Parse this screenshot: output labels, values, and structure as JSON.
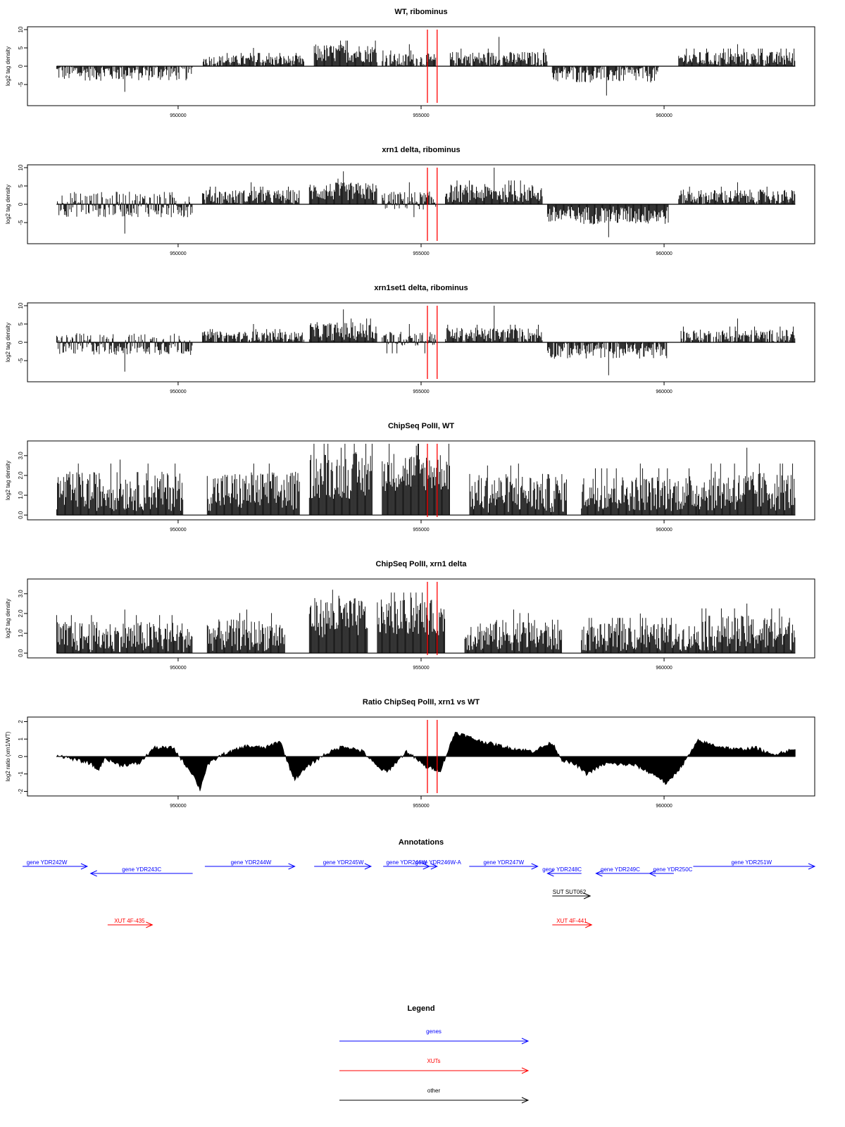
{
  "colors": {
    "genes": "#0000ff",
    "xuts": "#ff0000",
    "other": "#000000",
    "marker": "#ff0000",
    "bars": "#000000"
  },
  "x_ticks": [
    950000,
    955000,
    960000
  ],
  "markers_x": [
    955130,
    955330
  ],
  "chart_data": [
    {
      "type": "bar",
      "title": "WT, ribominus",
      "ylabel": "log2 tag density",
      "yticks": [
        -5,
        0,
        5,
        10
      ],
      "ylim": [
        -10,
        10
      ],
      "xlim": [
        946900,
        963100
      ],
      "segments": [
        {
          "x": [
            947500,
            950300
          ],
          "mean": -1.5,
          "amp": 2.5,
          "sign": "neg",
          "peak": -7
        },
        {
          "x": [
            950500,
            952600
          ],
          "mean": 1.5,
          "amp": 1.5,
          "sign": "pos",
          "peak": 5
        },
        {
          "x": [
            952800,
            954100
          ],
          "mean": 3.5,
          "amp": 2.5,
          "sign": "pos",
          "peak": 8.5
        },
        {
          "x": [
            954200,
            955300
          ],
          "mean": 1.5,
          "amp": 2,
          "sign": "pos",
          "peak": 6
        },
        {
          "x": [
            955600,
            957600
          ],
          "mean": 2,
          "amp": 2,
          "sign": "pos",
          "peak": 8
        },
        {
          "x": [
            957700,
            959900
          ],
          "mean": -2,
          "amp": 2.5,
          "sign": "neg",
          "peak": -8
        },
        {
          "x": [
            960300,
            962700
          ],
          "mean": 2,
          "amp": 2,
          "sign": "pos",
          "peak": 6
        }
      ]
    },
    {
      "type": "bar",
      "title": "xrn1 delta, ribominus",
      "ylabel": "log2 tag density",
      "yticks": [
        -5,
        0,
        5,
        10
      ],
      "ylim": [
        -10,
        10
      ],
      "xlim": [
        946900,
        963100
      ],
      "segments": [
        {
          "x": [
            947500,
            950300
          ],
          "mean": 0,
          "amp": 3.5,
          "sign": "both",
          "peak": -8
        },
        {
          "x": [
            950500,
            952500
          ],
          "mean": 2,
          "amp": 2,
          "sign": "pos",
          "peak": 6
        },
        {
          "x": [
            952700,
            954100
          ],
          "mean": 3.5,
          "amp": 2.5,
          "sign": "pos",
          "peak": 9
        },
        {
          "x": [
            954200,
            955300
          ],
          "mean": 1,
          "amp": 2.5,
          "sign": "both",
          "peak": 6
        },
        {
          "x": [
            955500,
            957500
          ],
          "mean": 3,
          "amp": 2.5,
          "sign": "pos",
          "peak": 10.5
        },
        {
          "x": [
            957600,
            960100
          ],
          "mean": -3,
          "amp": 2.5,
          "sign": "neg",
          "peak": -9
        },
        {
          "x": [
            960300,
            962700
          ],
          "mean": 2,
          "amp": 2,
          "sign": "pos",
          "peak": 6
        }
      ]
    },
    {
      "type": "bar",
      "title": "xrn1set1 delta, ribominus",
      "ylabel": "log2 tag density",
      "yticks": [
        -5,
        0,
        5,
        10
      ],
      "ylim": [
        -10,
        10
      ],
      "xlim": [
        946900,
        963100
      ],
      "segments": [
        {
          "x": [
            947500,
            950300
          ],
          "mean": -0.5,
          "amp": 3,
          "sign": "both",
          "peak": -8
        },
        {
          "x": [
            950500,
            952600
          ],
          "mean": 1.5,
          "amp": 1.5,
          "sign": "pos",
          "peak": 5
        },
        {
          "x": [
            952700,
            954100
          ],
          "mean": 3,
          "amp": 2.5,
          "sign": "pos",
          "peak": 9
        },
        {
          "x": [
            954200,
            955300
          ],
          "mean": 1,
          "amp": 2,
          "sign": "both",
          "peak": 5
        },
        {
          "x": [
            955500,
            957500
          ],
          "mean": 2,
          "amp": 2,
          "sign": "pos",
          "peak": 10
        },
        {
          "x": [
            957600,
            960100
          ],
          "mean": -2,
          "amp": 2.5,
          "sign": "neg",
          "peak": -9
        },
        {
          "x": [
            960300,
            962700
          ],
          "mean": 1.5,
          "amp": 2,
          "sign": "pos",
          "peak": 6.5
        }
      ]
    },
    {
      "type": "bar",
      "title": "ChipSeq PolII, WT",
      "ylabel": "log2 tag density",
      "yticks": [
        0.0,
        1.0,
        2.0,
        3.0
      ],
      "ylim": [
        -0.1,
        3.6
      ],
      "ytick_labels": [
        "0.0",
        "1.0",
        "2.0",
        "3.0"
      ],
      "xlim": [
        946900,
        963100
      ],
      "segments": [
        {
          "x": [
            947500,
            950100
          ],
          "mean": 1.2,
          "amp": 1.0,
          "sign": "pos",
          "peak": 2.8
        },
        {
          "x": [
            950600,
            952500
          ],
          "mean": 1.2,
          "amp": 1.0,
          "sign": "pos",
          "peak": 2.7
        },
        {
          "x": [
            952700,
            954000
          ],
          "mean": 2.0,
          "amp": 1.2,
          "sign": "pos",
          "peak": 3.4
        },
        {
          "x": [
            954200,
            955600
          ],
          "mean": 2.2,
          "amp": 1.0,
          "sign": "pos",
          "peak": 3.5
        },
        {
          "x": [
            956000,
            958000
          ],
          "mean": 1.1,
          "amp": 1.0,
          "sign": "pos",
          "peak": 2.6
        },
        {
          "x": [
            958300,
            960700
          ],
          "mean": 1.1,
          "amp": 0.9,
          "sign": "pos",
          "peak": 2.6
        },
        {
          "x": [
            960700,
            962700
          ],
          "mean": 1.2,
          "amp": 1.0,
          "sign": "pos",
          "peak": 3.4
        }
      ]
    },
    {
      "type": "bar",
      "title": "ChipSeq PolII, xrn1 delta",
      "ylabel": "log2 tag density",
      "yticks": [
        0.0,
        1.0,
        2.0,
        3.0
      ],
      "ylim": [
        -0.1,
        3.6
      ],
      "ytick_labels": [
        "0.0",
        "1.0",
        "2.0",
        "3.0"
      ],
      "xlim": [
        946900,
        963100
      ],
      "segments": [
        {
          "x": [
            947500,
            950300
          ],
          "mean": 0.8,
          "amp": 0.8,
          "sign": "pos",
          "peak": 2.2
        },
        {
          "x": [
            950600,
            952200
          ],
          "mean": 0.9,
          "amp": 0.8,
          "sign": "pos",
          "peak": 2.2
        },
        {
          "x": [
            952700,
            953900
          ],
          "mean": 1.8,
          "amp": 1.0,
          "sign": "pos",
          "peak": 2.9
        },
        {
          "x": [
            954100,
            955500
          ],
          "mean": 1.8,
          "amp": 0.9,
          "sign": "pos",
          "peak": 2.8
        },
        {
          "x": [
            955900,
            957900
          ],
          "mean": 0.9,
          "amp": 0.8,
          "sign": "pos",
          "peak": 2.2
        },
        {
          "x": [
            958300,
            960700
          ],
          "mean": 0.8,
          "amp": 0.7,
          "sign": "pos",
          "peak": 2.0
        },
        {
          "x": [
            960700,
            962700
          ],
          "mean": 1.0,
          "amp": 0.9,
          "sign": "pos",
          "peak": 2.5
        }
      ]
    },
    {
      "type": "area",
      "title": "Ratio ChipSeq PolII, xrn1 vs WT",
      "ylabel": "log2 ratio (xrn1/WT)",
      "yticks": [
        -2,
        -1,
        0,
        1,
        2
      ],
      "ylim": [
        -2.1,
        2.1
      ],
      "xlim": [
        946900,
        963100
      ],
      "profile": [
        [
          947500,
          0.1
        ],
        [
          947900,
          -0.2
        ],
        [
          948200,
          -0.4
        ],
        [
          948350,
          -0.8
        ],
        [
          948500,
          -0.1
        ],
        [
          948800,
          -0.5
        ],
        [
          949200,
          -0.4
        ],
        [
          949500,
          0.5
        ],
        [
          949900,
          0.5
        ],
        [
          950100,
          -0.3
        ],
        [
          950300,
          -1.0
        ],
        [
          950450,
          -1.9
        ],
        [
          950600,
          -0.5
        ],
        [
          950900,
          0.1
        ],
        [
          951400,
          0.6
        ],
        [
          951800,
          0.5
        ],
        [
          952100,
          0.9
        ],
        [
          952300,
          -0.7
        ],
        [
          952400,
          -1.3
        ],
        [
          952700,
          -0.5
        ],
        [
          953000,
          0.1
        ],
        [
          953400,
          0.6
        ],
        [
          953800,
          0.3
        ],
        [
          954100,
          -0.6
        ],
        [
          954300,
          -0.9
        ],
        [
          954700,
          0.3
        ],
        [
          955100,
          -0.6
        ],
        [
          955400,
          -0.8
        ],
        [
          955700,
          1.4
        ],
        [
          956200,
          0.9
        ],
        [
          956800,
          0.5
        ],
        [
          957300,
          0.3
        ],
        [
          957700,
          0.8
        ],
        [
          957900,
          -0.2
        ],
        [
          958200,
          -0.5
        ],
        [
          958400,
          -1.0
        ],
        [
          958800,
          -0.4
        ],
        [
          959400,
          -0.5
        ],
        [
          959900,
          -1.2
        ],
        [
          960050,
          -1.6
        ],
        [
          960400,
          -0.4
        ],
        [
          960700,
          0.9
        ],
        [
          961100,
          0.6
        ],
        [
          961500,
          0.4
        ],
        [
          961900,
          0.5
        ],
        [
          962200,
          0.1
        ],
        [
          962500,
          0.3
        ],
        [
          962700,
          0.4
        ]
      ]
    }
  ],
  "annotations": {
    "title": "Annotations",
    "items": [
      {
        "label": "gene YDR242W",
        "color": "genes",
        "x1": 946800,
        "x2": 948130,
        "dir": "right",
        "row": 0,
        "lx": 947300
      },
      {
        "label": "gene YDR243C",
        "color": "genes",
        "x1": 948200,
        "x2": 950300,
        "dir": "left",
        "row": 1,
        "lx": 949250
      },
      {
        "label": "gene YDR244W",
        "color": "genes",
        "x1": 950550,
        "x2": 952400,
        "dir": "right",
        "row": 0,
        "lx": 951500
      },
      {
        "label": "gene YDR245W",
        "color": "genes",
        "x1": 952800,
        "x2": 953970,
        "dir": "right",
        "row": 0,
        "lx": 953400
      },
      {
        "label": "gene YDR246W",
        "color": "genes",
        "x1": 954220,
        "x2": 955170,
        "dir": "right",
        "row": 0,
        "lx": 954700
      },
      {
        "label": "gene YDR246W-A",
        "color": "genes",
        "x1": 955170,
        "x2": 955330,
        "dir": "right",
        "row": 0,
        "lx": 955350
      },
      {
        "label": "gene YDR247W",
        "color": "genes",
        "x1": 955990,
        "x2": 957400,
        "dir": "right",
        "row": 0,
        "lx": 956700
      },
      {
        "label": "gene YDR248C",
        "color": "genes",
        "x1": 957600,
        "x2": 958300,
        "dir": "left",
        "row": 1,
        "lx": 957900
      },
      {
        "label": "gene YDR249C",
        "color": "genes",
        "x1": 958600,
        "x2": 959700,
        "dir": "left",
        "row": 1,
        "lx": 959100
      },
      {
        "label": "gene YDR250C",
        "color": "genes",
        "x1": 959700,
        "x2": 960200,
        "dir": "left",
        "row": 1,
        "lx": 960180
      },
      {
        "label": "gene YDR251W",
        "color": "genes",
        "x1": 960600,
        "x2": 963100,
        "dir": "right",
        "row": 0,
        "lx": 961800
      },
      {
        "label": "SUT SUT062",
        "color": "other",
        "x1": 957700,
        "x2": 958480,
        "dir": "right",
        "row": 2,
        "lx": 958050
      },
      {
        "label": "XUT 4F-435",
        "color": "xuts",
        "x1": 948550,
        "x2": 949470,
        "dir": "right",
        "row": 3,
        "lx": 949000
      },
      {
        "label": "XUT 4F-441",
        "color": "xuts",
        "x1": 957700,
        "x2": 958510,
        "dir": "right",
        "row": 3,
        "lx": 958100
      }
    ]
  },
  "legend": {
    "title": "Legend",
    "items": [
      {
        "label": "genes",
        "color": "genes"
      },
      {
        "label": "XUTs",
        "color": "xuts"
      },
      {
        "label": "other",
        "color": "other"
      }
    ]
  }
}
